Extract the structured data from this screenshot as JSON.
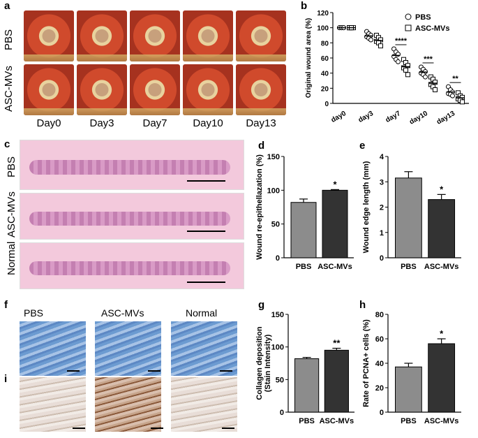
{
  "panels": {
    "a": "a",
    "b": "b",
    "c": "c",
    "d": "d",
    "e": "e",
    "f": "f",
    "g": "g",
    "h": "h",
    "i": "i"
  },
  "panel_a": {
    "rows": [
      "PBS",
      "ASC-MVs"
    ],
    "days": [
      "Day0",
      "Day3",
      "Day7",
      "Day10",
      "Day13"
    ]
  },
  "panel_c": {
    "rows": [
      "PBS",
      "ASC-MVs",
      "Normal"
    ]
  },
  "panel_f": {
    "columns": [
      "PBS",
      "ASC-MVs",
      "Normal"
    ]
  },
  "colors": {
    "pbs_bar": "#8c8c8c",
    "ascmv_bar": "#333333"
  },
  "chart_data": [
    {
      "id": "b",
      "type": "scatter",
      "ylabel": "Original wound area (%)",
      "categories": [
        "day0",
        "day3",
        "day7",
        "day10",
        "day13"
      ],
      "ylim": [
        0,
        120
      ],
      "yticks": [
        0,
        20,
        40,
        60,
        80,
        100,
        120
      ],
      "legend": "top-right",
      "series": [
        {
          "name": "PBS",
          "marker": "circle",
          "points": [
            [
              100,
              100,
              100,
              100,
              100,
              100
            ],
            [
              95,
              92,
              90,
              88,
              86,
              84
            ],
            [
              72,
              68,
              65,
              62,
              58,
              55
            ],
            [
              48,
              45,
              42,
              40,
              38,
              35
            ],
            [
              22,
              18,
              15,
              13,
              12,
              10
            ]
          ]
        },
        {
          "name": "ASC-MVs",
          "marker": "square",
          "points": [
            [
              100,
              100,
              100,
              100,
              100
            ],
            [
              90,
              87,
              84,
              82,
              80,
              76
            ],
            [
              58,
              54,
              50,
              47,
              44,
              38
            ],
            [
              35,
              32,
              28,
              25,
              22,
              18
            ],
            [
              14,
              10,
              8,
              6,
              4,
              2
            ]
          ]
        }
      ],
      "annotations": [
        "****",
        "***",
        "**"
      ]
    },
    {
      "id": "d",
      "type": "bar",
      "ylabel": "Wound re-epithellazation (%)",
      "categories": [
        "PBS",
        "ASC-MVs"
      ],
      "values": [
        82,
        100
      ],
      "errors": [
        5,
        1
      ],
      "ylim": [
        0,
        150
      ],
      "yticks": [
        0,
        50,
        100,
        150
      ],
      "annotations": [
        "",
        "*"
      ]
    },
    {
      "id": "e",
      "type": "bar",
      "ylabel": "Wound edge length (mm)",
      "categories": [
        "PBS",
        "ASC-MVs"
      ],
      "values": [
        3.15,
        2.3
      ],
      "errors": [
        0.25,
        0.2
      ],
      "ylim": [
        0,
        4
      ],
      "yticks": [
        0,
        1,
        2,
        3,
        4
      ],
      "annotations": [
        "",
        "*"
      ]
    },
    {
      "id": "g",
      "type": "bar",
      "ylabel": "Collagen deposition (Stain Intensity)",
      "ylabel_lines": [
        "Collagen deposition",
        "(Stain Intensity)"
      ],
      "categories": [
        "PBS",
        "ASC-MVs"
      ],
      "values": [
        82,
        95
      ],
      "errors": [
        2,
        3
      ],
      "ylim": [
        0,
        150
      ],
      "yticks": [
        0,
        50,
        100,
        150
      ],
      "annotations": [
        "",
        "**"
      ]
    },
    {
      "id": "h",
      "type": "bar",
      "ylabel": "Rate of PCNA+ cells (%)",
      "categories": [
        "PBS",
        "ASC-MVs"
      ],
      "values": [
        37,
        56
      ],
      "errors": [
        3,
        4
      ],
      "ylim": [
        0,
        80
      ],
      "yticks": [
        0,
        20,
        40,
        60,
        80
      ],
      "annotations": [
        "",
        "*"
      ]
    }
  ]
}
